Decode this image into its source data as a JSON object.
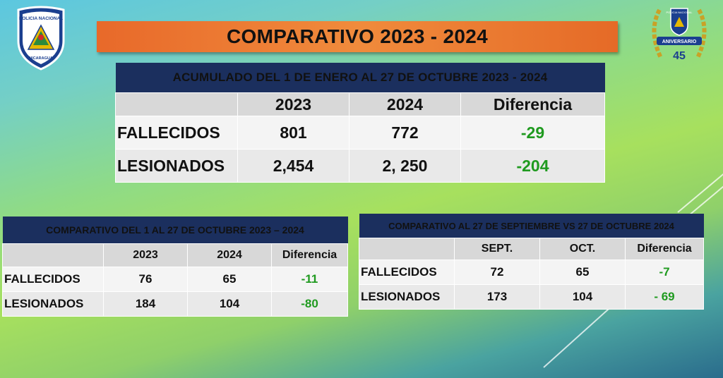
{
  "title": "COMPARATIVO 2023 - 2024",
  "logos": {
    "left_text_top": "POLICIA NACIONAL",
    "left_text_bottom": "NICARAGUA",
    "right_text_top": "POLICIA NACIONAL",
    "right_banner": "ANIVERSARIO",
    "right_number": "45"
  },
  "main_table": {
    "header": "ACUMULADO DEL 1 DE ENERO AL 27 DE OCTUBRE  2023 - 2024",
    "columns": [
      "",
      "2023",
      "2024",
      "Diferencia"
    ],
    "rows": [
      {
        "label": "FALLECIDOS",
        "a": "801",
        "b": "772",
        "diff": "-29"
      },
      {
        "label": "LESIONADOS",
        "a": "2,454",
        "b": "2, 250",
        "diff": "-204"
      }
    ]
  },
  "october_table": {
    "header": "COMPARATIVO DEL 1 AL 27 DE OCTUBRE 2023 – 2024",
    "columns": [
      "",
      "2023",
      "2024",
      "Diferencia"
    ],
    "rows": [
      {
        "label": "FALLECIDOS",
        "a": "76",
        "b": "65",
        "diff": "-11"
      },
      {
        "label": "LESIONADOS",
        "a": "184",
        "b": "104",
        "diff": "-80"
      }
    ]
  },
  "sept_oct_table": {
    "header": "COMPARATIVO AL 27 DE SEPTIEMBRE VS 27 DE OCTUBRE 2024",
    "columns": [
      "",
      "SEPT.",
      "OCT.",
      "Diferencia"
    ],
    "rows": [
      {
        "label": "FALLECIDOS",
        "a": "72",
        "b": "65",
        "diff": "-7"
      },
      {
        "label": "LESIONADOS",
        "a": "173",
        "b": "104",
        "diff": "- 69"
      }
    ]
  },
  "colors": {
    "header_navy": "#1b2f5e",
    "title_orange": "#ee7a33",
    "diff_green": "#1f9a1f"
  }
}
